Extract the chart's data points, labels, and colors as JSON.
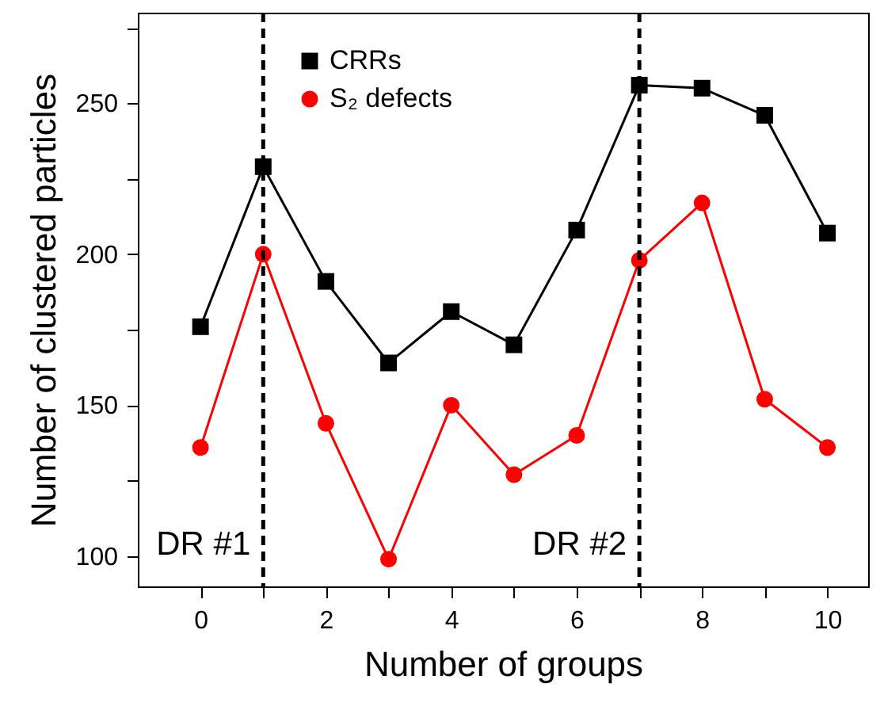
{
  "chart_data": {
    "type": "line",
    "xlabel": "Number of groups",
    "ylabel": "Number of clustered particles",
    "x": [
      0,
      1,
      2,
      3,
      4,
      5,
      6,
      7,
      8,
      9,
      10
    ],
    "series": [
      {
        "name": "CRRs",
        "color": "#000000",
        "marker": "square",
        "values": [
          176,
          229,
          191,
          164,
          181,
          170,
          208,
          256,
          255,
          246,
          207
        ]
      },
      {
        "name": "S₂ defects",
        "color": "#ff0000",
        "marker": "circle",
        "values": [
          136,
          200,
          144,
          99,
          150,
          127,
          140,
          198,
          217,
          152,
          136
        ]
      }
    ],
    "xlim": [
      -1,
      10.65
    ],
    "ylim": [
      90,
      280
    ],
    "xticks": [
      0,
      {
        "value": 1,
        "label": null
      },
      2,
      {
        "value": 3,
        "label": null
      },
      4,
      {
        "value": 5,
        "label": null
      },
      6,
      {
        "value": 7,
        "label": null
      },
      8,
      {
        "value": 9,
        "label": null
      },
      10
    ],
    "yticks": [
      100,
      {
        "value": 125,
        "label": null
      },
      150,
      {
        "value": 175,
        "label": null
      },
      200,
      {
        "value": 225,
        "label": null
      },
      250,
      {
        "value": 275,
        "label": null
      }
    ],
    "ref_lines": [
      {
        "axis": "x",
        "value": 1,
        "label": "DR #1",
        "line_style": "dashed",
        "color": "#000000"
      },
      {
        "axis": "x",
        "value": 7,
        "label": "DR #2",
        "line_style": "dashed",
        "color": "#000000"
      }
    ],
    "grid": false,
    "legend": "top left",
    "line_style": "solid"
  }
}
